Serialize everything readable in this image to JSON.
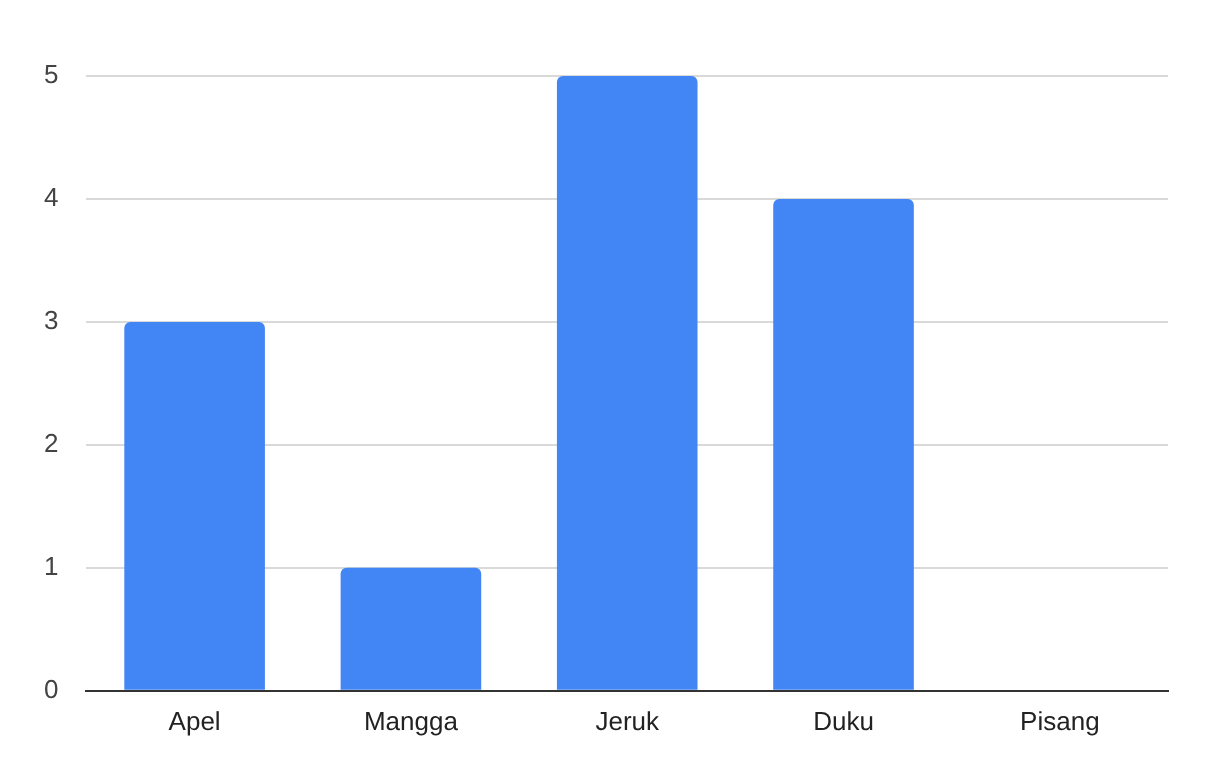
{
  "chart_data": {
    "type": "bar",
    "categories": [
      "Apel",
      "Mangga",
      "Jeruk",
      "Duku",
      "Pisang"
    ],
    "values": [
      3,
      1,
      5,
      4,
      0
    ],
    "color": "#4285f4",
    "ylim": [
      0,
      5
    ],
    "yticks": [
      0,
      1,
      2,
      3,
      4,
      5
    ],
    "grid": "y",
    "legend": false
  }
}
